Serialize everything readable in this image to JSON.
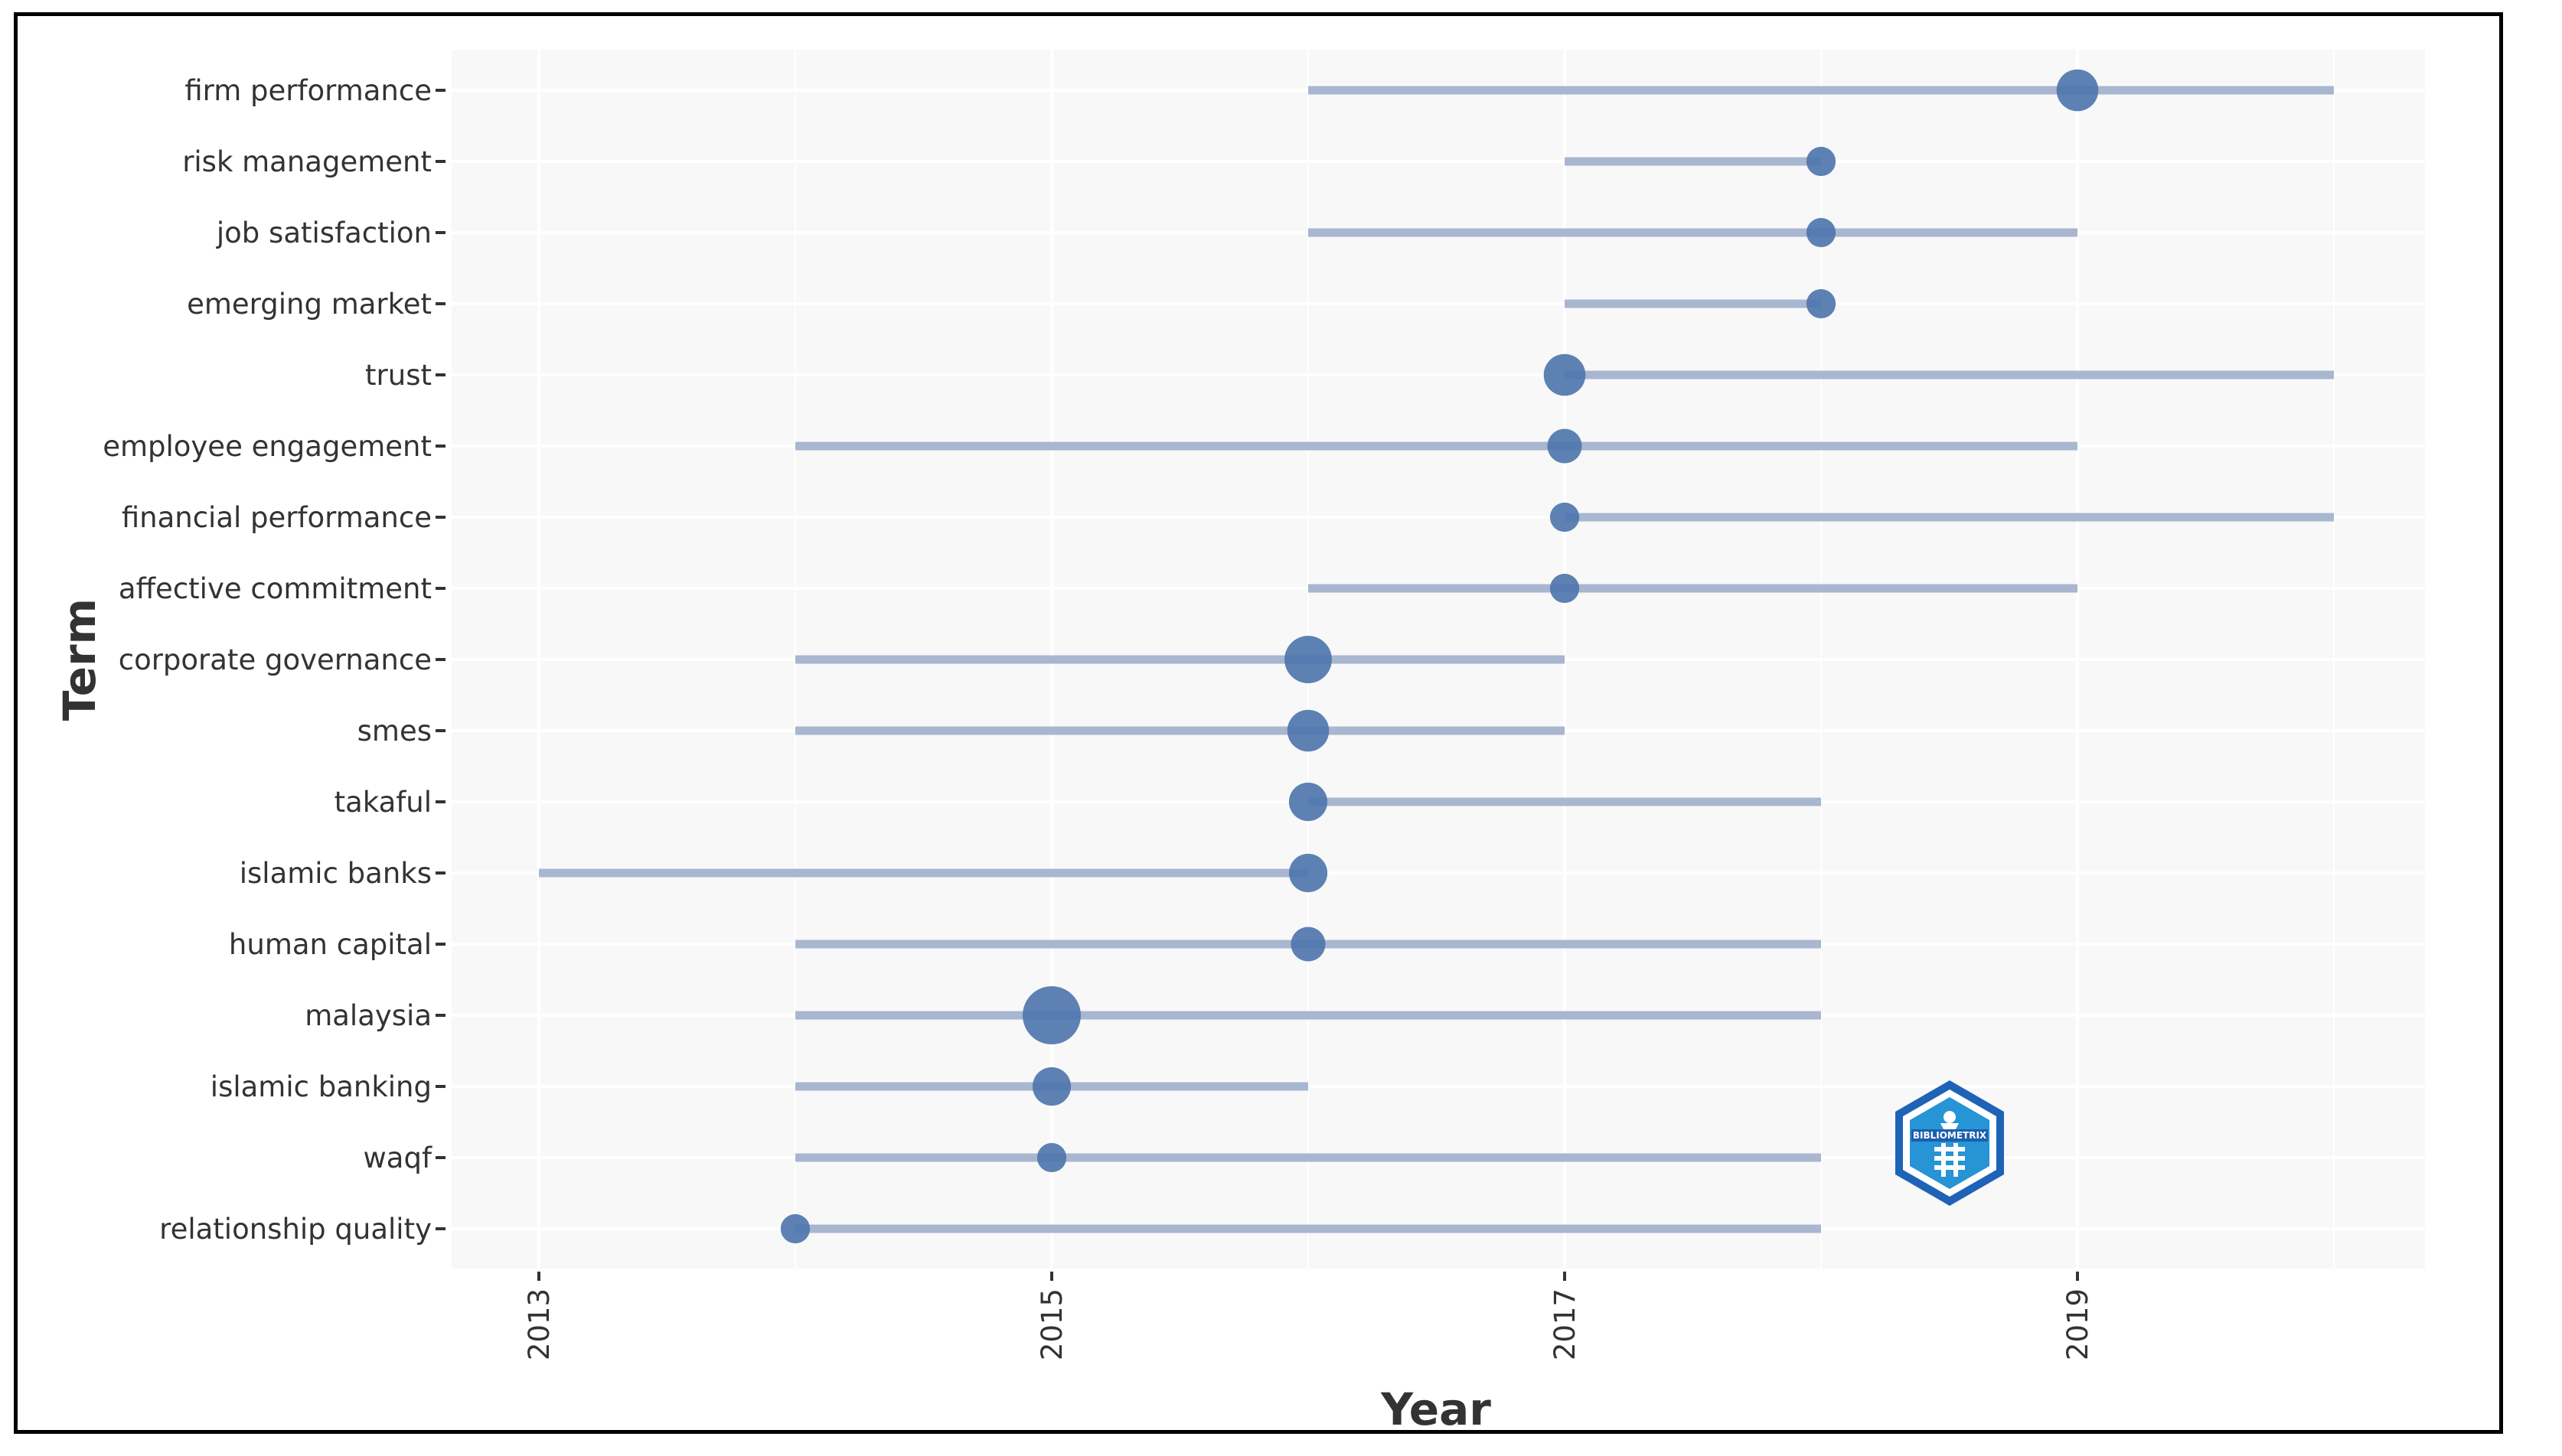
{
  "chart_data": {
    "type": "scatter",
    "subtype": "trend-topics-range",
    "xlabel": "Year",
    "ylabel": "Term",
    "x_ticks": [
      2013,
      2015,
      2017,
      2019
    ],
    "xlim": [
      2012.65,
      2020.35
    ],
    "grid": true,
    "legend": "none",
    "colors": {
      "range": "#a9b6d0",
      "point": "#4f76ad",
      "panel": "#f8f8f8",
      "grid": "#ffffff"
    },
    "terms": [
      {
        "term": "firm performance",
        "start": 2016,
        "end": 2020,
        "median": 2019,
        "freq": 5
      },
      {
        "term": "risk management",
        "start": 2017,
        "end": 2018,
        "median": 2018,
        "freq": 2
      },
      {
        "term": "job satisfaction",
        "start": 2016,
        "end": 2019,
        "median": 2018,
        "freq": 2
      },
      {
        "term": "emerging market",
        "start": 2017,
        "end": 2018,
        "median": 2018,
        "freq": 2
      },
      {
        "term": "trust",
        "start": 2017,
        "end": 2020,
        "median": 2017,
        "freq": 5
      },
      {
        "term": "employee engagement",
        "start": 2014,
        "end": 2019,
        "median": 2017,
        "freq": 3
      },
      {
        "term": "financial performance",
        "start": 2017,
        "end": 2020,
        "median": 2017,
        "freq": 2
      },
      {
        "term": "affective commitment",
        "start": 2016,
        "end": 2019,
        "median": 2017,
        "freq": 2
      },
      {
        "term": "corporate governance",
        "start": 2014,
        "end": 2017,
        "median": 2016,
        "freq": 7
      },
      {
        "term": "smes",
        "start": 2014,
        "end": 2017,
        "median": 2016,
        "freq": 5
      },
      {
        "term": "takaful",
        "start": 2016,
        "end": 2018,
        "median": 2016,
        "freq": 4
      },
      {
        "term": "islamic banks",
        "start": 2013,
        "end": 2016,
        "median": 2016,
        "freq": 4
      },
      {
        "term": "human capital",
        "start": 2014,
        "end": 2018,
        "median": 2016,
        "freq": 3
      },
      {
        "term": "malaysia",
        "start": 2014,
        "end": 2018,
        "median": 2015,
        "freq": 12
      },
      {
        "term": "islamic banking",
        "start": 2014,
        "end": 2016,
        "median": 2015,
        "freq": 4
      },
      {
        "term": "waqf",
        "start": 2014,
        "end": 2018,
        "median": 2015,
        "freq": 2
      },
      {
        "term": "relationship quality",
        "start": 2014,
        "end": 2018,
        "median": 2014,
        "freq": 2
      }
    ]
  },
  "logo": {
    "name": "bibliometrix-logo",
    "text": "BIBLIOMETRIX"
  }
}
